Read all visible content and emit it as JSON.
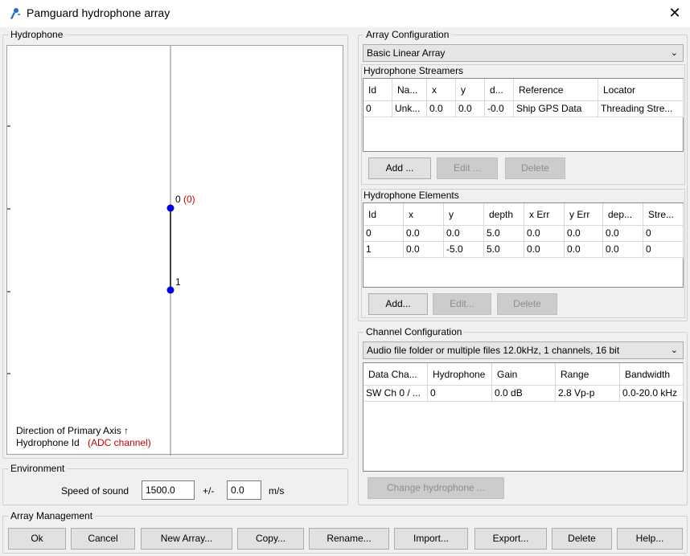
{
  "window": {
    "title": "Pamguard hydrophone array",
    "icon": "hydrophone-icon"
  },
  "hydrophone_panel": {
    "title": "Hydrophone",
    "elements": [
      {
        "label": "0",
        "channel": "(0)"
      },
      {
        "label": "1"
      }
    ],
    "legend_axis": "Direction of Primary Axis ↑",
    "legend_id": "Hydrophone Id",
    "legend_channel": "(ADC channel)"
  },
  "environment": {
    "title": "Environment",
    "speed_label": "Speed of sound",
    "speed_value": "1500.0",
    "pm_label": "+/-",
    "pm_value": "0.0",
    "unit": "m/s"
  },
  "array_config": {
    "title": "Array Configuration",
    "array_type": "Basic Linear Array",
    "streamers": {
      "title": "Hydrophone Streamers",
      "columns": [
        "Id",
        "Na...",
        "x",
        "y",
        "d...",
        "Reference",
        "Locator"
      ],
      "rows": [
        [
          "0",
          "Unk...",
          "0.0",
          "0.0",
          "-0.0",
          "Ship GPS Data",
          "Threading Stre..."
        ]
      ],
      "add": "Add ...",
      "edit": "Edit ...",
      "delete": "Delete"
    },
    "elements": {
      "title": "Hydrophone Elements",
      "columns": [
        "Id",
        "x",
        "y",
        "depth",
        "x Err",
        "y Err",
        "dep...",
        "Stre..."
      ],
      "rows": [
        [
          "0",
          "0.0",
          "0.0",
          "5.0",
          "0.0",
          "0.0",
          "0.0",
          "0"
        ],
        [
          "1",
          "0.0",
          "-5.0",
          "5.0",
          "0.0",
          "0.0",
          "0.0",
          "0"
        ]
      ],
      "add": "Add...",
      "edit": "Edit...",
      "delete": "Delete"
    }
  },
  "channel_config": {
    "title": "Channel Configuration",
    "source": "Audio file folder or multiple files  12.0kHz, 1 channels, 16 bit",
    "columns": [
      "Data Cha...",
      "Hydrophone",
      "Gain",
      "Range",
      "Bandwidth"
    ],
    "rows": [
      [
        "SW Ch 0 / ...",
        "0",
        "0.0 dB",
        "2.8 Vp-p",
        "0.0-20.0 kHz"
      ]
    ],
    "change": "Change hydrophone ..."
  },
  "array_management": {
    "title": "Array Management",
    "buttons": {
      "ok": "Ok",
      "cancel": "Cancel",
      "new": "New Array...",
      "copy": "Copy...",
      "rename": "Rename...",
      "import": "Import...",
      "export": "Export...",
      "delete": "Delete",
      "help": "Help..."
    }
  },
  "colors": {
    "element_dot": "#0000e0",
    "channel_text": "#c00000"
  }
}
